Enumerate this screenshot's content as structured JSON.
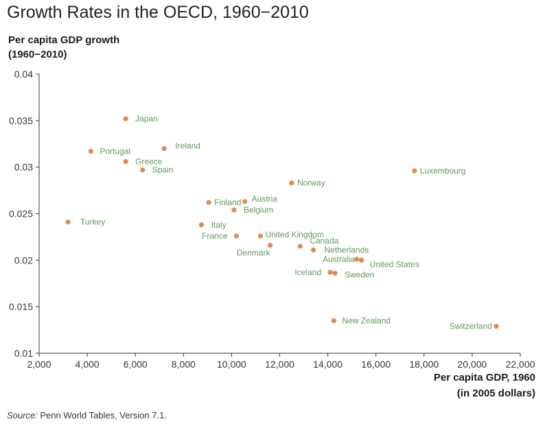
{
  "chart_data": {
    "type": "scatter",
    "title": "Growth Rates in the OECD, 1960−2010",
    "ylabel_line1": "Per capita GDP growth",
    "ylabel_line2": "(1960−2010)",
    "xlabel_line1": "Per capita GDP, 1960",
    "xlabel_line2": "(in 2005 dollars)",
    "xlim": [
      2000,
      22000
    ],
    "ylim": [
      0.01,
      0.04
    ],
    "xticks": [
      2000,
      4000,
      6000,
      8000,
      10000,
      12000,
      14000,
      16000,
      18000,
      20000,
      22000
    ],
    "xtick_labels": [
      "2,000",
      "4,000",
      "6,000",
      "8,000",
      "10,000",
      "12,000",
      "14,000",
      "16,000",
      "18,000",
      "20,000",
      "22,000"
    ],
    "yticks": [
      0.01,
      0.015,
      0.02,
      0.025,
      0.03,
      0.035,
      0.04
    ],
    "ytick_labels": [
      "0.01",
      "0.015",
      "0.02",
      "0.025",
      "0.03",
      "0.035",
      "0.04"
    ],
    "grid": false,
    "marker_color": "#e08a50",
    "label_color": "#5a9a5a",
    "points": [
      {
        "label": "Japan",
        "x": 5600,
        "y": 0.0352
      },
      {
        "label": "Ireland",
        "x": 7200,
        "y": 0.032
      },
      {
        "label": "Portugal",
        "x": 4150,
        "y": 0.0317
      },
      {
        "label": "Greece",
        "x": 5600,
        "y": 0.0306
      },
      {
        "label": "Spain",
        "x": 6300,
        "y": 0.0297
      },
      {
        "label": "Luxembourg",
        "x": 17600,
        "y": 0.0296
      },
      {
        "label": "Norway",
        "x": 12500,
        "y": 0.0283
      },
      {
        "label": "Finland",
        "x": 9050,
        "y": 0.0262
      },
      {
        "label": "Austria",
        "x": 10550,
        "y": 0.0263
      },
      {
        "label": "Belgium",
        "x": 10100,
        "y": 0.0254
      },
      {
        "label": "Turkey",
        "x": 3200,
        "y": 0.0241
      },
      {
        "label": "Italy",
        "x": 8750,
        "y": 0.0238
      },
      {
        "label": "France",
        "x": 10200,
        "y": 0.0226
      },
      {
        "label": "United Kingdom",
        "x": 11200,
        "y": 0.0226
      },
      {
        "label": "Denmark",
        "x": 11600,
        "y": 0.0216
      },
      {
        "label": "Canada",
        "x": 12850,
        "y": 0.0215
      },
      {
        "label": "Netherlands",
        "x": 13400,
        "y": 0.0211
      },
      {
        "label": "Australia",
        "x": 15200,
        "y": 0.0201
      },
      {
        "label": "United States",
        "x": 15400,
        "y": 0.02
      },
      {
        "label": "Iceland",
        "x": 14100,
        "y": 0.0187
      },
      {
        "label": "Sweden",
        "x": 14300,
        "y": 0.0186
      },
      {
        "label": "New Zealand",
        "x": 14250,
        "y": 0.0135
      },
      {
        "label": "Switzerland",
        "x": 21000,
        "y": 0.0129
      }
    ]
  },
  "source_label": "Source:",
  "source_text": " Penn World Tables, Version 7.1."
}
